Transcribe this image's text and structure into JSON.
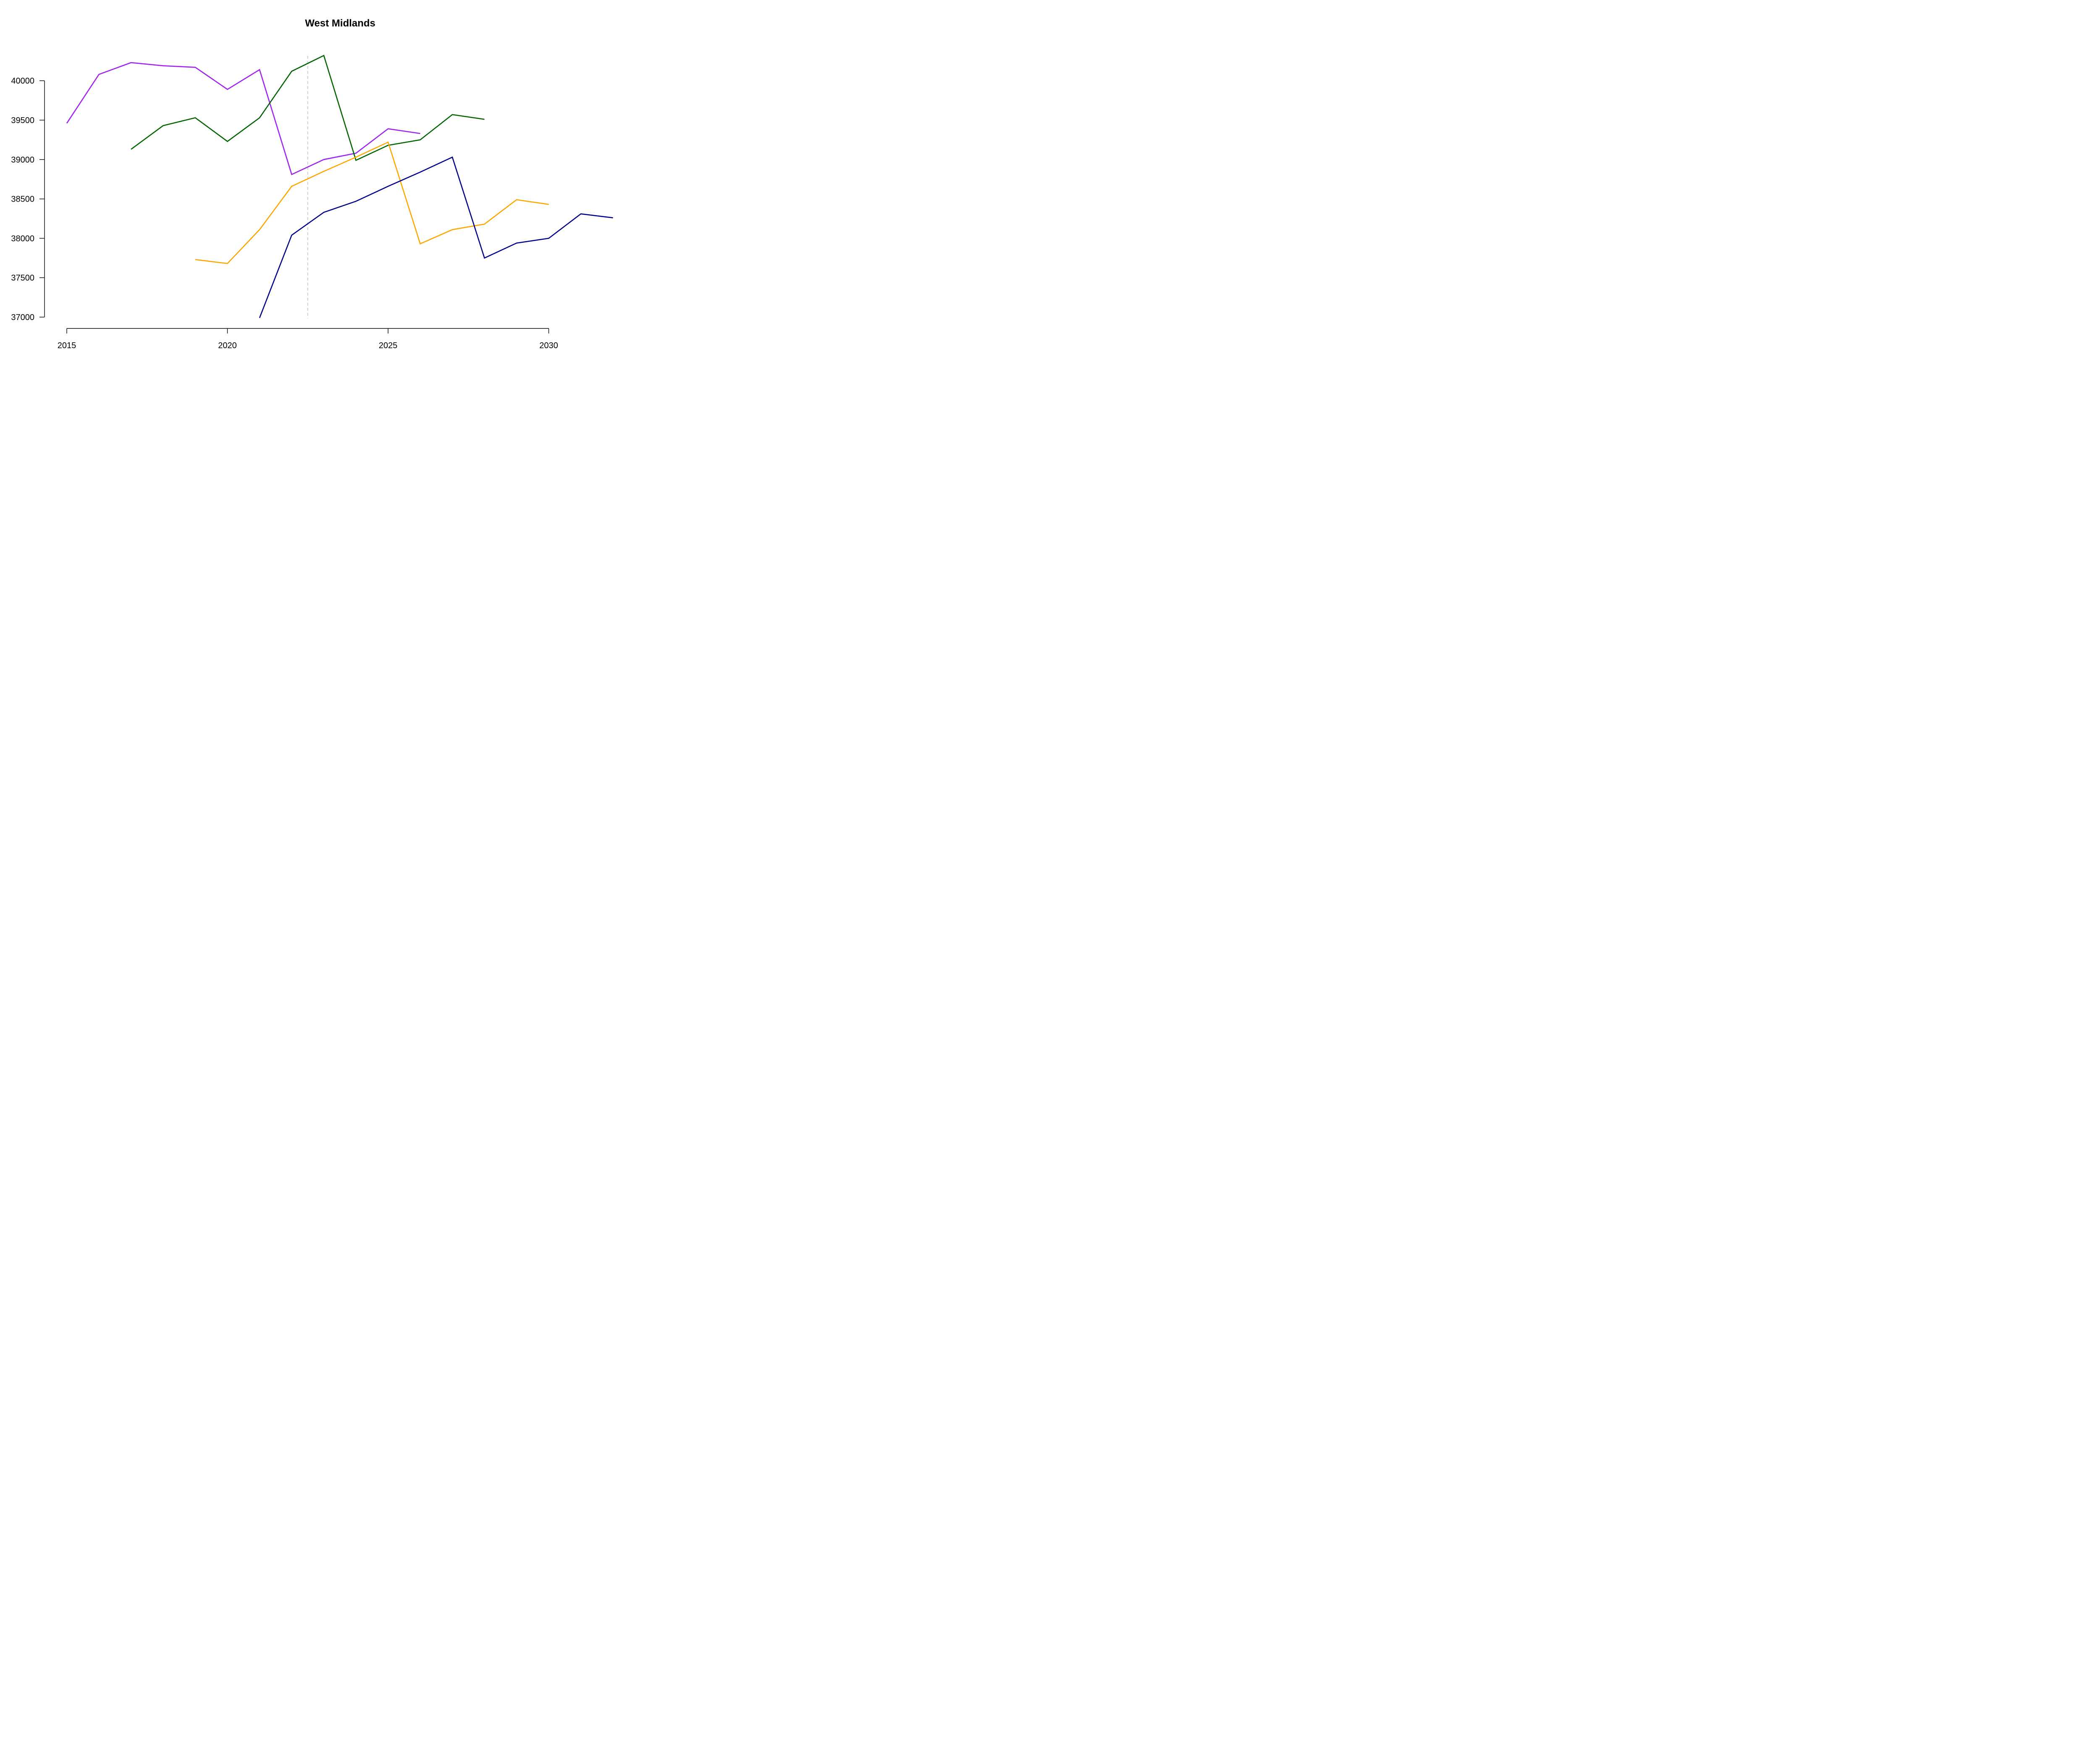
{
  "chart_data": {
    "type": "line",
    "title": "West Midlands",
    "xlabel": "",
    "ylabel": "",
    "xlim": [
      2015,
      2032.2
    ],
    "ylim": [
      37000,
      40320
    ],
    "x_ticks": [
      2015,
      2020,
      2025,
      2030
    ],
    "y_ticks": [
      37000,
      37500,
      38000,
      38500,
      39000,
      39500,
      40000
    ],
    "grid": false,
    "legend": "none",
    "reference_line": {
      "x": 2022.5,
      "color": "#bfbfbf",
      "style": "dashed"
    },
    "series": [
      {
        "color": "#a020f0",
        "x": [
          2015,
          2016,
          2017,
          2018,
          2019,
          2020,
          2021,
          2022,
          2023,
          2024,
          2025,
          2026
        ],
        "y": [
          39460,
          40080,
          40230,
          40190,
          40170,
          39890,
          40140,
          38810,
          39000,
          39080,
          39390,
          39330
        ]
      },
      {
        "color": "#006400",
        "x": [
          2017,
          2018,
          2019,
          2020,
          2021,
          2022,
          2023,
          2024,
          2025,
          2026,
          2027,
          2028
        ],
        "y": [
          39130,
          39430,
          39530,
          39230,
          39530,
          40120,
          40320,
          38990,
          39180,
          39250,
          39570,
          39510
        ]
      },
      {
        "color": "#ffa500",
        "x": [
          2019,
          2020,
          2021,
          2022,
          2023,
          2024,
          2025,
          2026,
          2027,
          2028,
          2029,
          2030
        ],
        "y": [
          37730,
          37680,
          38110,
          38660,
          38850,
          39030,
          39220,
          37930,
          38110,
          38180,
          38490,
          38430
        ]
      },
      {
        "color": "#00008b",
        "x": [
          2021,
          2022,
          2023,
          2024,
          2025,
          2026,
          2027,
          2028,
          2029,
          2030,
          2031,
          2032
        ],
        "y": [
          36990,
          38040,
          38330,
          38470,
          38660,
          38840,
          39030,
          37750,
          37940,
          38000,
          38310,
          38260
        ]
      }
    ]
  }
}
